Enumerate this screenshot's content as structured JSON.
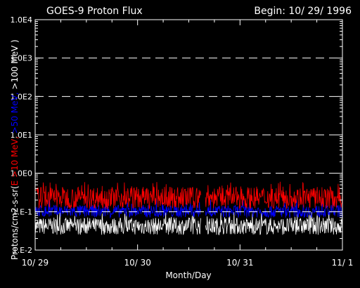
{
  "chart_data": {
    "type": "line",
    "title": "GOES-9 Proton Flux",
    "begin_label": "Begin: 10/ 29/ 1996",
    "xlabel": "Month/Day",
    "ylabel_parts": [
      {
        "text": "Protons/cm2-s-sr(",
        "color": "#ffffff"
      },
      {
        "text": "E >10 MeV, ",
        "color": "#ff0000"
      },
      {
        "text": ">50 MeV, ",
        "color": "#0000ff"
      },
      {
        "text": ">100 MeV )",
        "color": "#ffffff"
      }
    ],
    "y_scale": "log",
    "ylim": [
      0.01,
      10000
    ],
    "y_ticks": [
      {
        "value": 0.01,
        "label": "1.E-2"
      },
      {
        "value": 0.1,
        "label": "1.E-1"
      },
      {
        "value": 1,
        "label": "1.0E0"
      },
      {
        "value": 10,
        "label": "1.0E1"
      },
      {
        "value": 100,
        "label": "1.0E2"
      },
      {
        "value": 1000,
        "label": "1.0E3"
      },
      {
        "value": 10000,
        "label": "1.0E4"
      }
    ],
    "dashed_gridlines_at": [
      0.1,
      1,
      10,
      100,
      1000
    ],
    "xlim_days": [
      0,
      3
    ],
    "x_ticks": [
      {
        "value": 0,
        "label": "10/ 29"
      },
      {
        "value": 1,
        "label": "10/ 30"
      },
      {
        "value": 2,
        "label": "10/ 31"
      },
      {
        "value": 3,
        "label": "11/ 1"
      }
    ],
    "series": [
      {
        "name": ">10 MeV",
        "color": "#ff0000",
        "typical_range": [
          0.12,
          0.45
        ],
        "peak": 0.6
      },
      {
        "name": ">50 MeV",
        "color": "#0000ff",
        "typical_range": [
          0.07,
          0.15
        ],
        "peak": 0.22
      },
      {
        "name": ">100 MeV",
        "color": "#ffffff",
        "typical_range": [
          0.025,
          0.07
        ],
        "peak": 0.1
      }
    ],
    "data_gaps_days": [
      [
        1.62,
        1.66
      ]
    ]
  }
}
